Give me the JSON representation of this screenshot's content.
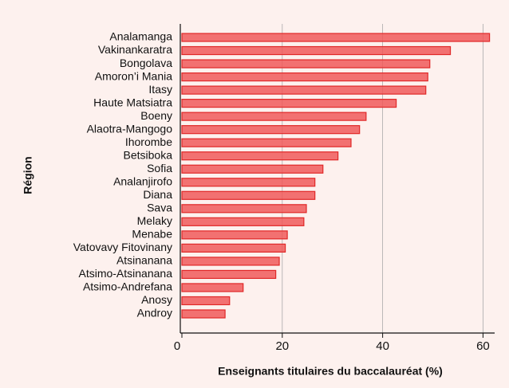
{
  "chart_data": {
    "type": "bar",
    "orientation": "horizontal",
    "x_label": "Enseignants titulaires du baccalauréat (%)",
    "y_label": "Région",
    "categories": [
      "Analamanga",
      "Vakinankaratra",
      "Bongolava",
      "Amoron’i Mania",
      "Itasy",
      "Haute Matsiatra",
      "Boeny",
      "Alaotra-Mangogo",
      "Ihorombe",
      "Betsiboka",
      "Sofia",
      "Analanjirofo",
      "Diana",
      "Sava",
      "Melaky",
      "Menabe",
      "Vatovavy Fitovinany",
      "Atsinanana",
      "Atsimo-Atsinanana",
      "Atsimo-Andrefana",
      "Anosy",
      "Androy"
    ],
    "values": [
      61.3,
      53.5,
      49.4,
      49,
      48.6,
      42.7,
      36.7,
      35.4,
      33.7,
      31.1,
      28.1,
      26.5,
      26.5,
      24.8,
      24.3,
      21,
      20.6,
      19.4,
      18.7,
      12.2,
      9.5,
      8.6
    ],
    "color": "#f05a5a",
    "xlim": [
      0,
      62
    ],
    "xticks": [
      0,
      20,
      40,
      60
    ],
    "grid": true
  }
}
